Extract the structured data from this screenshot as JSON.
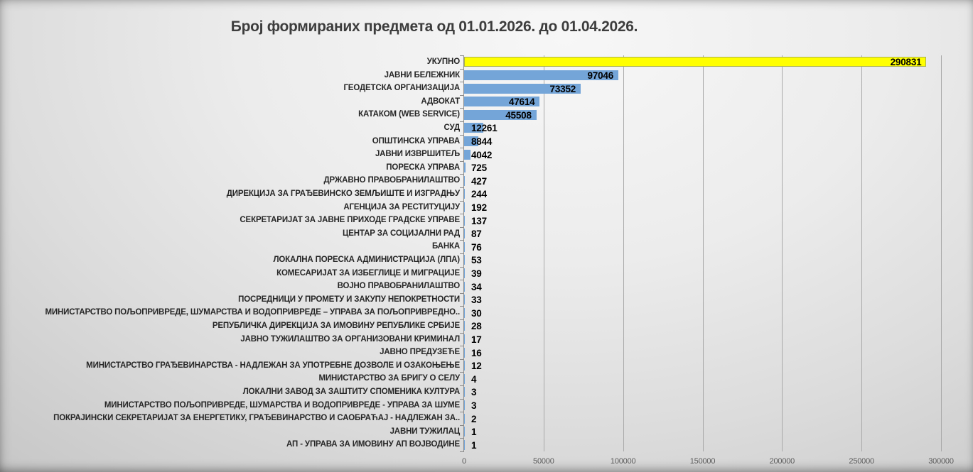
{
  "chart_data": {
    "type": "bar",
    "orientation": "horizontal",
    "title": "Број формираних предмета од 01.01.2026. до 01.04.2026.",
    "xlabel": "",
    "ylabel": "",
    "xlim": [
      0,
      300000
    ],
    "x_ticks": [
      0,
      50000,
      100000,
      150000,
      200000,
      250000,
      300000
    ],
    "grid": true,
    "legend": false,
    "bar_color": "#74A5D8",
    "highlight_category": "УКУПНО",
    "highlight_color": "#FFFF00",
    "categories": [
      "УКУПНО",
      "ЈАВНИ БЕЛЕЖНИК",
      "ГЕОДЕТСКА ОРГАНИЗАЦИЈА",
      "АДВОКАТ",
      "КАТАКОМ (WEB SERVICE)",
      "СУД",
      "ОПШТИНСКА УПРАВА",
      "ЈАВНИ ИЗВРШИТЕЉ",
      "ПОРЕСКА УПРАВА",
      "ДРЖАВНО ПРАВОБРАНИЛАШТВО",
      "ДИРЕКЦИЈА ЗА ГРАЂЕВИНСКО ЗЕМЉИШТЕ И ИЗГРАДЊУ",
      "АГЕНЦИЈА ЗА РЕСТИТУЦИЈУ",
      "СЕКРЕТАРИЈАТ ЗА ЈАВНЕ ПРИХОДЕ ГРАДСКЕ УПРАВЕ",
      "ЦЕНТАР ЗА СОЦИЈАЛНИ РАД",
      "БАНКА",
      "ЛОКАЛНА ПОРЕСКА АДМИНИСТРАЦИЈА (ЛПА)",
      "КОМЕСАРИЈАТ ЗА ИЗБЕГЛИЦЕ И МИГРАЦИЈЕ",
      "ВОЈНО ПРАВОБРАНИЛАШТВО",
      "ПОСРЕДНИЦИ У ПРОМЕТУ И ЗАКУПУ НЕПОКРЕТНОСТИ",
      "МИНИСТАРСТВО ПОЉОПРИВРЕДЕ, ШУМАРСТВА И ВОДОПРИВРЕДЕ – УПРАВА ЗА ПОЉОПРИВРЕДНО..",
      "РЕПУБЛИЧКА ДИРЕКЦИЈА ЗА ИМОВИНУ РЕПУБЛИКЕ СРБИЈЕ",
      "ЈАВНО ТУЖИЛАШТВО ЗА ОРГАНИЗОВАНИ КРИМИНАЛ",
      "ЈАВНО ПРЕДУЗЕЋЕ",
      "МИНИСТАРСТВО ГРАЂЕВИНАРСТВА - НАДЛЕЖАН ЗА УПОТРЕБНЕ ДОЗВОЛЕ И ОЗАКОЊЕЊЕ",
      "МИНИСТАРСТВО ЗА БРИГУ О СЕЛУ",
      "ЛОКАЛНИ ЗАВОД ЗА ЗАШТИТУ СПОМЕНИКА КУЛТУРА",
      "МИНИСТАРСТВО ПОЉОПРИВРЕДЕ, ШУМАРСТВА И ВОДОПРИВРЕДЕ - УПРАВА ЗА ШУМЕ",
      "ПОКРАЈИНСКИ СЕКРЕТАРИЈАТ ЗА ЕНЕРГЕТИКУ, ГРАЂЕВИНАРСТВО И САОБРАЋАЈ - НАДЛЕЖАН ЗА..",
      "ЈАВНИ ТУЖИЛАЦ",
      "АП - УПРАВА ЗА ИМОВИНУ АП ВОЈВОДИНЕ"
    ],
    "values": [
      290831,
      97046,
      73352,
      47614,
      45508,
      12261,
      8844,
      4042,
      725,
      427,
      244,
      192,
      137,
      87,
      76,
      53,
      39,
      34,
      33,
      30,
      28,
      17,
      16,
      12,
      4,
      3,
      3,
      2,
      1,
      1
    ]
  }
}
